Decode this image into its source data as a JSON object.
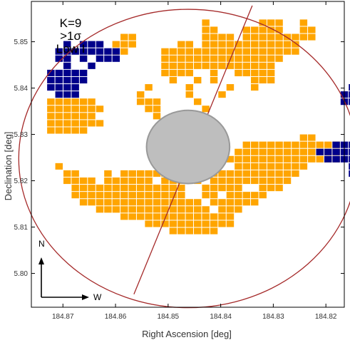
{
  "chart_data": {
    "type": "heatmap",
    "title": "",
    "xlabel": "Right Ascension [deg]",
    "ylabel": "Declination [deg]",
    "x_direction": "decreasing",
    "xlim": [
      184.876,
      184.8165
    ],
    "ylim": [
      5.7927,
      5.8587
    ],
    "x_ticks": [
      "184.87",
      "184.86",
      "184.85",
      "184.84",
      "184.83",
      "184.82"
    ],
    "y_ticks": [
      "5.80",
      "5.81",
      "5.82",
      "5.83",
      "5.84",
      "5.85"
    ],
    "annotation_lines": [
      "K=9",
      ">1σ",
      "Low I"
    ],
    "compass": {
      "north": "N",
      "west": "W"
    },
    "colors": {
      "orange": "#FFA500",
      "blue": "#00008B",
      "circle": "#A52A2A",
      "masked": "#BEBEBE",
      "frame": "#000000"
    },
    "pixel_size_deg": 0.00155,
    "grid_origin": {
      "ra": 184.87455,
      "dec": 5.85635
    },
    "field_circle": {
      "center_ra": 184.8462,
      "center_dec": 5.8248,
      "radius_deg": 0.0322
    },
    "masked_circle": {
      "center_ra": 184.8462,
      "center_dec": 5.8273,
      "radius_deg": 0.0079,
      "note": "masked core"
    },
    "divider_line": {
      "ra_dec_start": [
        184.8565,
        5.7955
      ],
      "ra_dec_end": [
        184.834,
        5.8578
      ]
    },
    "series": [
      {
        "color_key": "orange",
        "rows": [
          [],
          [
            "20",
            "27-29",
            "32"
          ],
          [
            "20-21",
            "25-29",
            "32-33"
          ],
          [
            "10-11",
            "20-23",
            "25-33"
          ],
          [
            "9-11",
            "17-18",
            "20-31"
          ],
          [
            "9-10",
            "15-31"
          ],
          [
            "15-29"
          ],
          [
            "15-28"
          ],
          [
            "15-18",
            "21",
            "24-28"
          ],
          [
            "16",
            "19",
            "21",
            "26-28"
          ],
          [
            "13",
            "18",
            "23",
            "26"
          ],
          [
            "12",
            "18",
            "22"
          ],
          [
            "1-6",
            "12-14",
            "19"
          ],
          [
            "1-7",
            "13-14",
            "20"
          ],
          [
            "1-6",
            "14"
          ],
          [
            "1-7",
            "15"
          ],
          [
            "1-5"
          ],
          [
            "17",
            "32-33"
          ],
          [
            "25-36"
          ],
          [
            "20",
            "24-36"
          ],
          [
            "23-36"
          ],
          [
            "2",
            "24-32"
          ],
          [
            "3-4",
            "8",
            "10-16",
            "21-31"
          ],
          [
            "3-6",
            "8-13",
            "15-19",
            "21-30"
          ],
          [
            "4-17",
            "20-24",
            "27-29"
          ],
          [
            "4-17",
            "20-21",
            "23-27"
          ],
          [
            "5-19",
            "21-26"
          ],
          [
            "7-20",
            "22-24"
          ],
          [
            "10-23"
          ],
          [
            "13-23"
          ],
          [
            "16-21"
          ]
        ]
      },
      {
        "color_key": "blue",
        "rows": [
          [],
          [
            "49"
          ],
          [
            "50",
            "53"
          ],
          [
            "51",
            "53-54"
          ],
          [
            "3",
            "5-7",
            "43",
            "54-55"
          ],
          [
            "2-9",
            "49",
            "51-55"
          ],
          [
            "2-3",
            "5",
            "7-9",
            "48-55"
          ],
          [
            "3",
            "6",
            "42-43",
            "49",
            "51-55"
          ],
          [
            "1-5",
            "46",
            "54-55"
          ],
          [
            "1-5",
            "44",
            "52-55"
          ],
          [
            "1-4",
            "38-40",
            "47-55"
          ],
          [
            "2-4",
            "37-40",
            "44-55"
          ],
          [
            "37-38",
            "40-55"
          ],
          [
            "39",
            "43-55"
          ],
          [
            "42-44",
            "48-55"
          ],
          [
            "42-44",
            "47-55"
          ],
          [
            "39-41",
            "47-55"
          ],
          [
            "40-55"
          ],
          [
            "36-55"
          ],
          [
            "34-55"
          ],
          [
            "35-55"
          ],
          [
            "38-55"
          ],
          [
            "38",
            "40-55"
          ],
          [
            "49-55"
          ],
          [
            "49-55"
          ],
          [
            "49-55"
          ],
          [
            "51-55"
          ],
          [
            "49-55"
          ],
          [
            "50-55"
          ],
          [
            "49-55"
          ],
          [
            "49-55"
          ],
          [
            "49-55"
          ],
          [
            "49-55"
          ],
          [
            "49-55"
          ],
          [
            "49-55"
          ],
          [
            "49-55"
          ],
          [
            "49-55"
          ],
          [
            "50-53"
          ],
          [
            "51-52"
          ],
          [
            "51"
          ],
          [],
          [],
          [],
          [],
          [],
          []
        ],
        "extra": {
          "rows_offset": 0
        }
      }
    ]
  }
}
